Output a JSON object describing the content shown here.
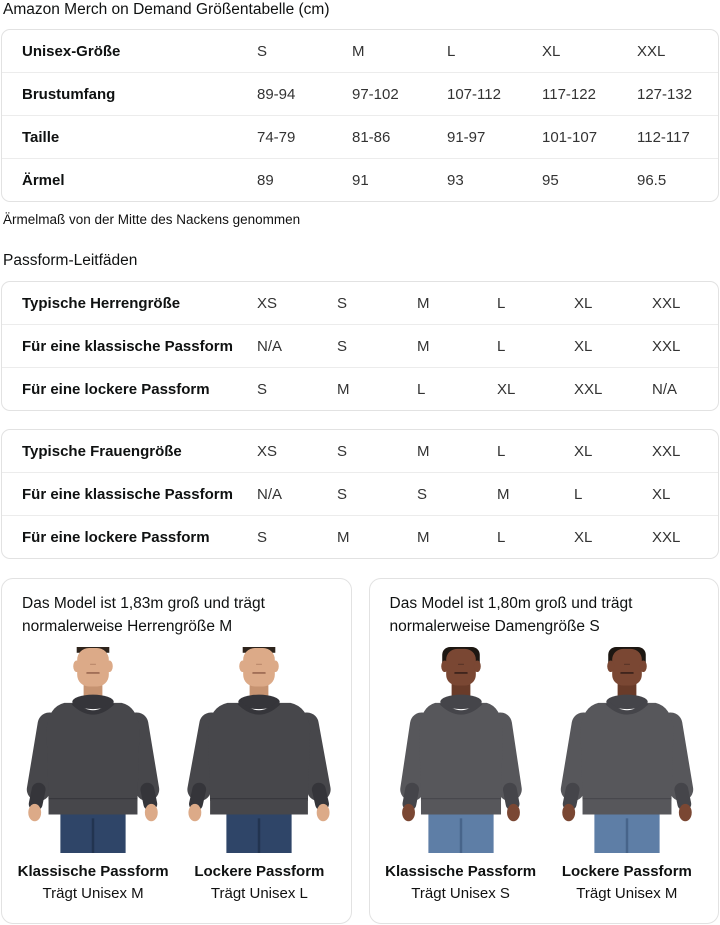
{
  "title": "Amazon Merch on Demand Größentabelle (cm)",
  "size_table": {
    "header_label": "Unisex-Größe",
    "header_sizes": [
      "S",
      "M",
      "L",
      "XL",
      "XXL"
    ],
    "rows": [
      {
        "label": "Brustumfang",
        "values": [
          "89-94",
          "97-102",
          "107-112",
          "117-122",
          "127-132"
        ]
      },
      {
        "label": "Taille",
        "values": [
          "74-79",
          "81-86",
          "91-97",
          "101-107",
          "112-117"
        ]
      },
      {
        "label": "Ärmel",
        "values": [
          "89",
          "91",
          "93",
          "95",
          "96.5"
        ]
      }
    ]
  },
  "sleeve_note": "Ärmelmaß von der Mitte des Nackens genommen",
  "fit_guides_heading": "Passform-Leitfäden",
  "fit_tables": [
    {
      "rows": [
        {
          "label": "Typische Herrengröße",
          "values": [
            "XS",
            "S",
            "M",
            "L",
            "XL",
            "XXL"
          ]
        },
        {
          "label": "Für eine klassische Passform",
          "values": [
            "N/A",
            "S",
            "M",
            "L",
            "XL",
            "XXL"
          ]
        },
        {
          "label": "Für eine lockere Passform",
          "values": [
            "S",
            "M",
            "L",
            "XL",
            "XXL",
            "N/A"
          ]
        }
      ]
    },
    {
      "rows": [
        {
          "label": "Typische Frauengröße",
          "values": [
            "XS",
            "S",
            "M",
            "L",
            "XL",
            "XXL"
          ]
        },
        {
          "label": "Für eine klassische Passform",
          "values": [
            "N/A",
            "S",
            "S",
            "M",
            "L",
            "XL"
          ]
        },
        {
          "label": "Für eine lockere Passform",
          "values": [
            "S",
            "M",
            "M",
            "L",
            "XL",
            "XXL"
          ]
        }
      ]
    }
  ],
  "model_panels": [
    {
      "description": "Das Model ist 1,83m groß und trägt normalerweise Herrengröße M",
      "models": [
        {
          "fit_label": "Klassische Passform",
          "size_label": "Trägt Unisex M"
        },
        {
          "fit_label": "Lockere Passform",
          "size_label": "Trägt Unisex L"
        }
      ]
    },
    {
      "description": "Das Model ist 1,80m groß und trägt normalerweise Damengröße S",
      "models": [
        {
          "fit_label": "Klassische Passform",
          "size_label": "Trägt Unisex S"
        },
        {
          "fit_label": "Lockere Passform",
          "size_label": "Trägt Unisex M"
        }
      ]
    }
  ],
  "colors": {
    "card_border": "#e2e2e2",
    "row_divider": "#ececec",
    "label_text": "#0f1111",
    "value_text": "#333333"
  },
  "graphics": {
    "figures": [
      {
        "gender": "male",
        "fit": "classic",
        "width": 1.0,
        "skin": "#dcaa88",
        "skin_shade": "#c69371",
        "mouth": "#9a6750",
        "hair": "#2e241c",
        "sweat": "#47474b",
        "sweat_dark": "#35353a",
        "jeans": "#2f4568",
        "jeans_dark": "#223450"
      },
      {
        "gender": "male",
        "fit": "loose",
        "width": 1.1,
        "skin": "#dcaa88",
        "skin_shade": "#c69371",
        "mouth": "#9a6750",
        "hair": "#2e241c",
        "sweat": "#47474b",
        "sweat_dark": "#35353a",
        "jeans": "#2f4568",
        "jeans_dark": "#223450"
      },
      {
        "gender": "female",
        "fit": "classic",
        "width": 0.9,
        "skin": "#7a4733",
        "skin_shade": "#693b29",
        "mouth": "#38201a",
        "hair": "#1d1712",
        "sweat": "#57575b",
        "sweat_dark": "#45454a",
        "jeans": "#5e7ea6",
        "jeans_dark": "#47648a"
      },
      {
        "gender": "female",
        "fit": "loose",
        "width": 1.0,
        "skin": "#7a4733",
        "skin_shade": "#693b29",
        "mouth": "#38201a",
        "hair": "#1d1712",
        "sweat": "#57575b",
        "sweat_dark": "#45454a",
        "jeans": "#5e7ea6",
        "jeans_dark": "#47648a"
      }
    ]
  }
}
